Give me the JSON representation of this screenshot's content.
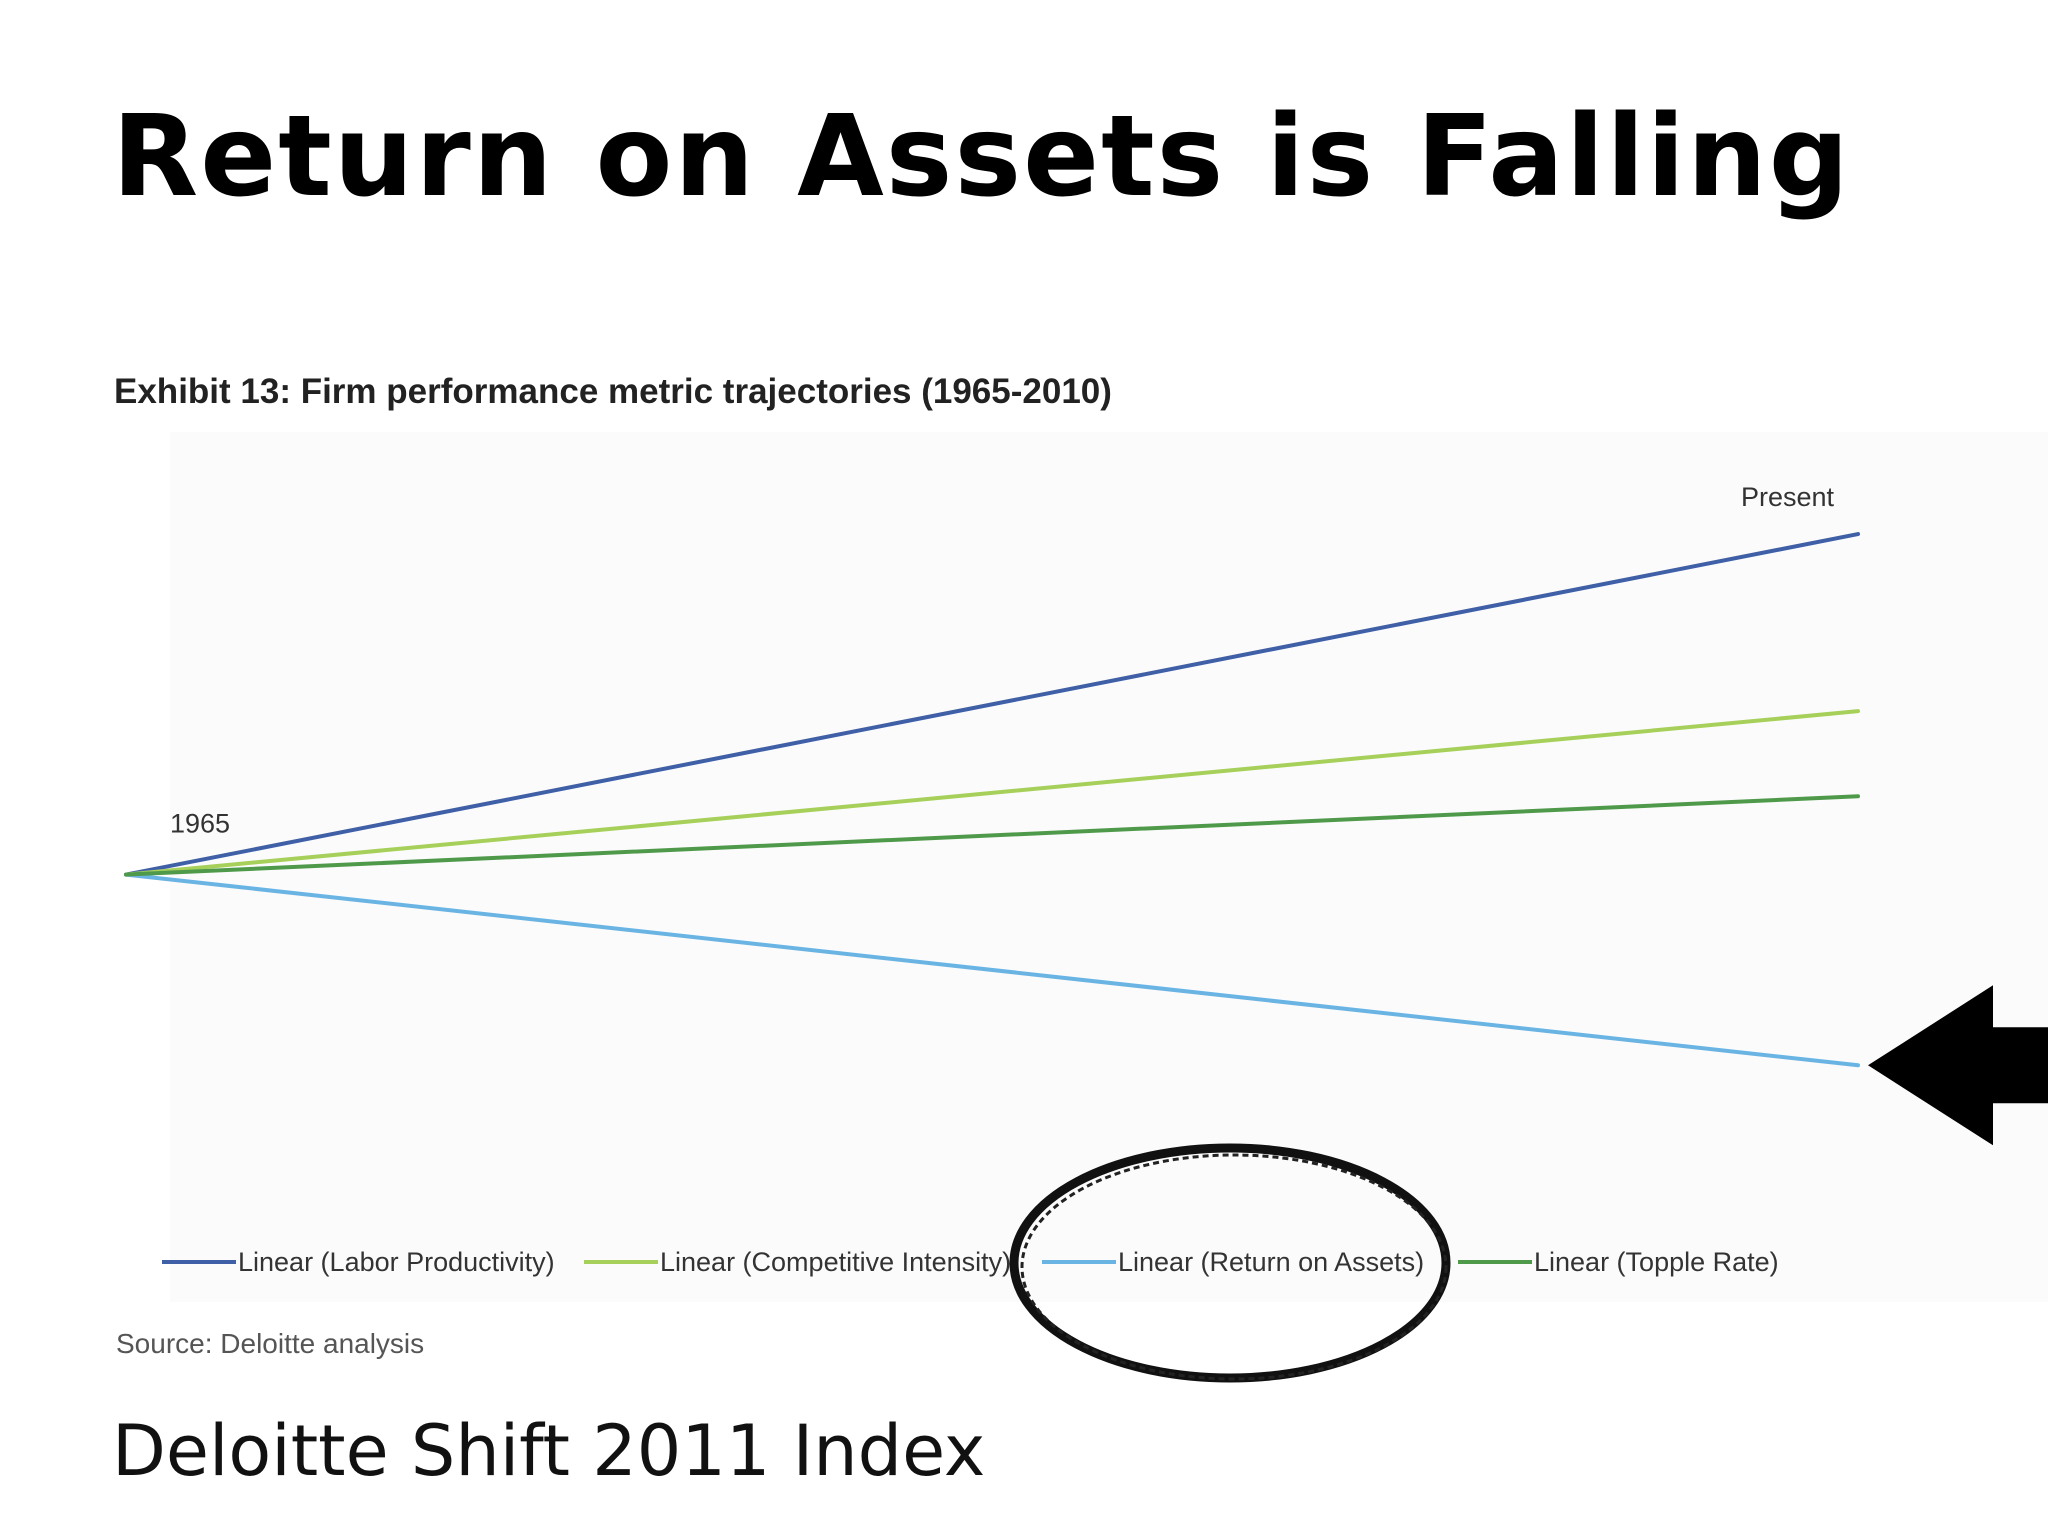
{
  "slide": {
    "title": "Return on Assets is Falling",
    "caption": "Deloitte Shift 2011 Index"
  },
  "chart_data": {
    "type": "line",
    "title": "Exhibit 13: Firm performance metric trajectories (1965-2010)",
    "source": "Source: Deloitte analysis",
    "x": [
      "1965",
      "Present"
    ],
    "point_labels": {
      "start": "1965",
      "end": "Present"
    },
    "series": [
      {
        "name": "Linear (Labor Productivity)",
        "color": "#3f5fa6",
        "values": [
          0,
          1.0
        ]
      },
      {
        "name": "Linear (Competitive Intensity)",
        "color": "#a6d05a",
        "values": [
          0,
          0.48
        ]
      },
      {
        "name": "Linear (Return on Assets)",
        "color": "#6ab4e4",
        "values": [
          0,
          -0.56
        ]
      },
      {
        "name": "Linear (Topple Rate)",
        "color": "#4f9a4a",
        "values": [
          0,
          0.23
        ]
      }
    ],
    "ylim": [
      -0.75,
      1.1
    ],
    "grid": false,
    "legend_position": "bottom",
    "highlight": {
      "series": "Linear (Return on Assets)",
      "marks": [
        "circle",
        "arrow"
      ]
    }
  }
}
